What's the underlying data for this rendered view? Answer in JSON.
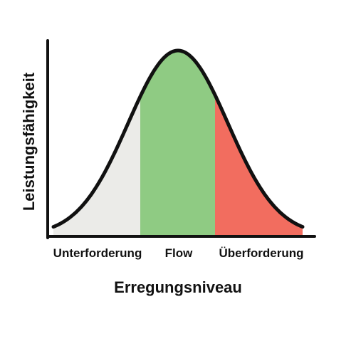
{
  "diagram": {
    "ylabel": "Leistungsfähigkeit",
    "xlabel": "Erregungsniveau",
    "zones": [
      {
        "label": "Unterforderung",
        "color": "#ebebe8"
      },
      {
        "label": "Flow",
        "color": "#8fcb83"
      },
      {
        "label": "Überforderung",
        "color": "#f26d5f"
      }
    ],
    "curve_color": "#111111",
    "axis_color": "#111111"
  }
}
